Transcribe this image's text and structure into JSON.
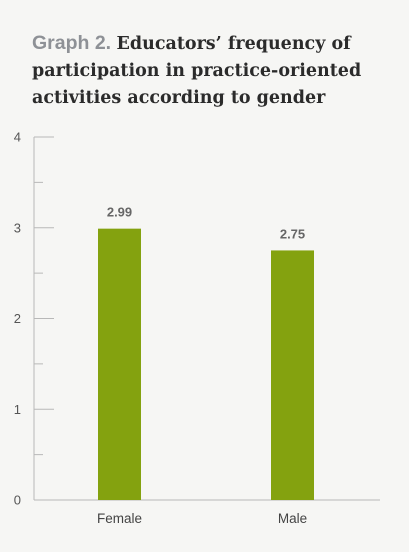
{
  "header": {
    "prefix": "Graph 2.",
    "title": "Educators’ frequency of participation in practice-oriented activities according to gender"
  },
  "chart_data": {
    "type": "bar",
    "categories": [
      "Female",
      "Male"
    ],
    "values": [
      2.99,
      2.75
    ],
    "value_labels": [
      "2.99",
      "2.75"
    ],
    "ylim": [
      0,
      4
    ],
    "yticks": [
      0,
      1,
      2,
      3,
      4
    ],
    "minor_ticks": true,
    "grid": false,
    "bar_color": "#84a20f",
    "axis_color": "#b8b8b8"
  }
}
